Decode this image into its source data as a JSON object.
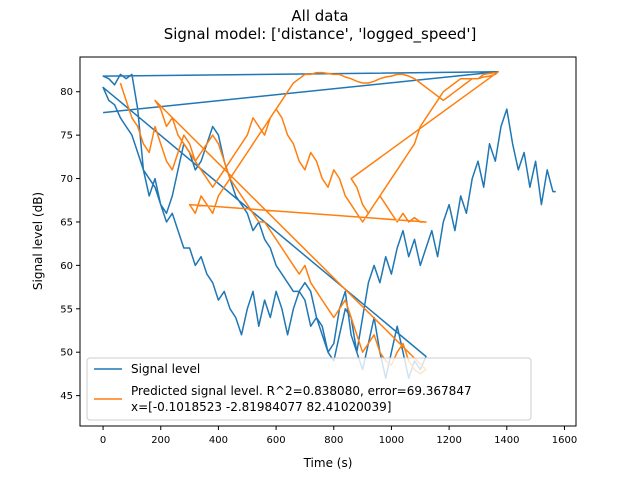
{
  "chart_data": {
    "type": "line",
    "title": "All data",
    "subtitle": "Signal model: ['distance', 'logged_speed']",
    "xlabel": "Time (s)",
    "ylabel": "Signal level (dB)",
    "xlim": [
      -80,
      1640
    ],
    "ylim": [
      41.5,
      84
    ],
    "xticks": [
      0,
      200,
      400,
      600,
      800,
      1000,
      1200,
      1400,
      1600
    ],
    "yticks": [
      45,
      50,
      55,
      60,
      65,
      70,
      75,
      80
    ],
    "grid": false,
    "legend_position": "lower-left",
    "series": [
      {
        "name": "Signal level",
        "color": "#1f77b4",
        "points": [
          [
            0,
            77.6
          ],
          [
            1370,
            82.3
          ],
          [
            0,
            81.8
          ],
          [
            20,
            81.5
          ],
          [
            40,
            80.8
          ],
          [
            60,
            82
          ],
          [
            80,
            81.5
          ],
          [
            100,
            82
          ],
          [
            120,
            78
          ],
          [
            140,
            71
          ],
          [
            160,
            68
          ],
          [
            180,
            70
          ],
          [
            200,
            67
          ],
          [
            220,
            66
          ],
          [
            240,
            68
          ],
          [
            260,
            71
          ],
          [
            280,
            74
          ],
          [
            300,
            73
          ],
          [
            320,
            71
          ],
          [
            340,
            72
          ],
          [
            360,
            74
          ],
          [
            380,
            76
          ],
          [
            400,
            75
          ],
          [
            420,
            72
          ],
          [
            440,
            70
          ],
          [
            460,
            68
          ],
          [
            480,
            67
          ],
          [
            500,
            66
          ],
          [
            520,
            64
          ],
          [
            540,
            65
          ],
          [
            560,
            63
          ],
          [
            580,
            62
          ],
          [
            600,
            60
          ],
          [
            620,
            59
          ],
          [
            640,
            58
          ],
          [
            660,
            57
          ],
          [
            680,
            57
          ],
          [
            700,
            58
          ],
          [
            720,
            57
          ],
          [
            740,
            54
          ],
          [
            760,
            53
          ],
          [
            780,
            50
          ],
          [
            800,
            49
          ],
          [
            820,
            52
          ],
          [
            840,
            55
          ],
          [
            860,
            54
          ],
          [
            880,
            50
          ],
          [
            900,
            48
          ],
          [
            920,
            51
          ],
          [
            940,
            54
          ],
          [
            960,
            50
          ],
          [
            980,
            47
          ],
          [
            1000,
            50
          ],
          [
            1020,
            53
          ],
          [
            1040,
            50
          ],
          [
            1060,
            47
          ],
          [
            1080,
            49
          ],
          [
            1100,
            48
          ],
          [
            1120,
            49.5
          ],
          [
            0,
            80.5
          ],
          [
            20,
            79
          ],
          [
            40,
            78.5
          ],
          [
            60,
            77
          ],
          [
            80,
            76
          ],
          [
            100,
            75
          ],
          [
            120,
            73
          ],
          [
            140,
            71
          ],
          [
            160,
            70
          ],
          [
            180,
            69
          ],
          [
            200,
            67
          ],
          [
            220,
            65
          ],
          [
            240,
            66
          ],
          [
            260,
            64
          ],
          [
            280,
            62
          ],
          [
            300,
            62
          ],
          [
            320,
            60
          ],
          [
            340,
            61
          ],
          [
            360,
            59
          ],
          [
            380,
            58
          ],
          [
            400,
            56
          ],
          [
            420,
            57
          ],
          [
            440,
            55
          ],
          [
            460,
            54
          ],
          [
            480,
            52
          ],
          [
            500,
            55
          ],
          [
            520,
            57
          ],
          [
            540,
            53
          ],
          [
            560,
            56
          ],
          [
            580,
            54
          ],
          [
            600,
            57
          ],
          [
            620,
            55
          ],
          [
            640,
            52
          ],
          [
            660,
            55
          ],
          [
            680,
            57
          ],
          [
            700,
            56
          ],
          [
            720,
            53
          ],
          [
            740,
            54
          ],
          [
            760,
            52
          ],
          [
            780,
            50
          ],
          [
            800,
            51
          ],
          [
            820,
            55
          ],
          [
            840,
            57
          ],
          [
            860,
            52
          ],
          [
            880,
            50
          ],
          [
            900,
            54
          ],
          [
            920,
            58
          ],
          [
            940,
            60
          ],
          [
            960,
            58
          ],
          [
            980,
            61
          ],
          [
            1000,
            59
          ],
          [
            1020,
            62
          ],
          [
            1040,
            64
          ],
          [
            1060,
            61
          ],
          [
            1080,
            63
          ],
          [
            1100,
            60
          ],
          [
            1120,
            62
          ],
          [
            1140,
            64
          ],
          [
            1160,
            61
          ],
          [
            1180,
            65
          ],
          [
            1200,
            67
          ],
          [
            1220,
            64
          ],
          [
            1240,
            68
          ],
          [
            1260,
            66
          ],
          [
            1280,
            70
          ],
          [
            1300,
            72
          ],
          [
            1320,
            69
          ],
          [
            1340,
            74
          ],
          [
            1360,
            72
          ],
          [
            1380,
            76
          ],
          [
            1400,
            78
          ],
          [
            1420,
            74
          ],
          [
            1440,
            71
          ],
          [
            1460,
            73
          ],
          [
            1480,
            69
          ],
          [
            1500,
            72
          ],
          [
            1520,
            67
          ],
          [
            1540,
            71
          ],
          [
            1560,
            68.5
          ],
          [
            1570,
            68.5
          ]
        ]
      },
      {
        "name": "Predicted signal level. R^2=0.838080, error=69.367847\nx=[-0.1018523  -2.81984077 82.41020039]",
        "color": "#ff7f0e",
        "points": [
          [
            60,
            81
          ],
          [
            80,
            79
          ],
          [
            100,
            77
          ],
          [
            120,
            76
          ],
          [
            140,
            74
          ],
          [
            160,
            73
          ],
          [
            180,
            76
          ],
          [
            200,
            74
          ],
          [
            220,
            72
          ],
          [
            240,
            71
          ],
          [
            260,
            73
          ],
          [
            280,
            75
          ],
          [
            300,
            74
          ],
          [
            320,
            72
          ],
          [
            340,
            73
          ],
          [
            360,
            74
          ],
          [
            380,
            75
          ],
          [
            400,
            74
          ],
          [
            420,
            72
          ],
          [
            440,
            70
          ],
          [
            460,
            69
          ],
          [
            480,
            68
          ],
          [
            500,
            67
          ],
          [
            520,
            66
          ],
          [
            540,
            65
          ],
          [
            560,
            65
          ],
          [
            580,
            64
          ],
          [
            600,
            63
          ],
          [
            620,
            62
          ],
          [
            640,
            61
          ],
          [
            660,
            60
          ],
          [
            680,
            59
          ],
          [
            700,
            60
          ],
          [
            720,
            58
          ],
          [
            740,
            57
          ],
          [
            760,
            56
          ],
          [
            780,
            55
          ],
          [
            800,
            54
          ],
          [
            820,
            55
          ],
          [
            840,
            56
          ],
          [
            860,
            54
          ],
          [
            880,
            52
          ],
          [
            900,
            50
          ],
          [
            920,
            51
          ],
          [
            940,
            52
          ],
          [
            960,
            50
          ],
          [
            980,
            49
          ],
          [
            1000,
            48.5
          ],
          [
            1020,
            50
          ],
          [
            1040,
            51
          ],
          [
            1060,
            49
          ],
          [
            1080,
            48
          ],
          [
            1100,
            47.5
          ],
          [
            1120,
            48
          ],
          [
            180,
            79
          ],
          [
            200,
            78
          ],
          [
            220,
            76
          ],
          [
            240,
            77
          ],
          [
            260,
            75
          ],
          [
            280,
            74
          ],
          [
            300,
            73
          ],
          [
            320,
            72
          ],
          [
            340,
            71
          ],
          [
            360,
            70
          ],
          [
            380,
            69
          ],
          [
            400,
            70
          ],
          [
            420,
            71
          ],
          [
            440,
            72
          ],
          [
            460,
            73
          ],
          [
            480,
            74
          ],
          [
            500,
            75
          ],
          [
            520,
            77
          ],
          [
            540,
            76
          ],
          [
            560,
            75
          ],
          [
            580,
            77
          ],
          [
            600,
            78
          ],
          [
            620,
            77
          ],
          [
            640,
            75
          ],
          [
            660,
            74
          ],
          [
            680,
            72
          ],
          [
            700,
            71
          ],
          [
            720,
            73
          ],
          [
            740,
            72
          ],
          [
            760,
            70
          ],
          [
            780,
            69
          ],
          [
            800,
            71
          ],
          [
            820,
            70
          ],
          [
            840,
            68
          ],
          [
            860,
            67
          ],
          [
            880,
            66
          ],
          [
            900,
            65
          ],
          [
            920,
            66
          ],
          [
            940,
            67
          ],
          [
            960,
            68
          ],
          [
            980,
            69
          ],
          [
            1000,
            70
          ],
          [
            1020,
            71
          ],
          [
            1040,
            72
          ],
          [
            1060,
            73
          ],
          [
            1080,
            74
          ],
          [
            1100,
            76
          ],
          [
            1120,
            77
          ],
          [
            1140,
            78
          ],
          [
            1160,
            79
          ],
          [
            1180,
            80
          ],
          [
            1200,
            80.5
          ],
          [
            1220,
            81
          ],
          [
            1240,
            81.5
          ],
          [
            1260,
            81.5
          ],
          [
            1280,
            81.5
          ],
          [
            1300,
            81.5
          ],
          [
            1320,
            81.7
          ],
          [
            1340,
            81.8
          ],
          [
            1360,
            82
          ],
          [
            1370,
            82.3
          ],
          [
            860,
            70
          ],
          [
            880,
            69
          ],
          [
            900,
            67
          ],
          [
            920,
            66
          ],
          [
            940,
            67
          ],
          [
            960,
            68
          ],
          [
            980,
            67
          ],
          [
            1000,
            66
          ],
          [
            1020,
            65
          ],
          [
            1040,
            66
          ],
          [
            1060,
            65
          ],
          [
            1080,
            65.5
          ],
          [
            1100,
            65
          ],
          [
            1120,
            65
          ],
          [
            300,
            67
          ],
          [
            320,
            66
          ],
          [
            340,
            68
          ],
          [
            360,
            67
          ],
          [
            380,
            66
          ],
          [
            400,
            68
          ],
          [
            420,
            69
          ],
          [
            440,
            70
          ],
          [
            460,
            71
          ],
          [
            480,
            72
          ],
          [
            500,
            73
          ],
          [
            520,
            74
          ],
          [
            540,
            75
          ],
          [
            560,
            76
          ],
          [
            580,
            77
          ],
          [
            600,
            78
          ],
          [
            620,
            79
          ],
          [
            640,
            80
          ],
          [
            660,
            81
          ],
          [
            680,
            81.5
          ],
          [
            700,
            82
          ],
          [
            720,
            82
          ],
          [
            740,
            82.2
          ],
          [
            760,
            82.2
          ],
          [
            780,
            82.1
          ],
          [
            800,
            82
          ],
          [
            820,
            82
          ],
          [
            840,
            81.7
          ],
          [
            860,
            81.5
          ],
          [
            880,
            81.2
          ],
          [
            900,
            81
          ],
          [
            920,
            81
          ],
          [
            940,
            81.2
          ],
          [
            960,
            81.5
          ],
          [
            980,
            81.7
          ],
          [
            1000,
            81.8
          ],
          [
            1020,
            82
          ],
          [
            1040,
            82
          ],
          [
            1060,
            81.8
          ],
          [
            1080,
            81.5
          ],
          [
            1100,
            81
          ],
          [
            1120,
            80.5
          ],
          [
            1140,
            80
          ],
          [
            1160,
            79.5
          ],
          [
            1180,
            79
          ],
          [
            1200,
            79.5
          ],
          [
            1220,
            80
          ],
          [
            1240,
            80.5
          ],
          [
            1260,
            81
          ],
          [
            1280,
            81.5
          ],
          [
            1300,
            81.5
          ],
          [
            1320,
            82
          ],
          [
            1340,
            82.1
          ],
          [
            1360,
            82.2
          ]
        ]
      }
    ]
  }
}
